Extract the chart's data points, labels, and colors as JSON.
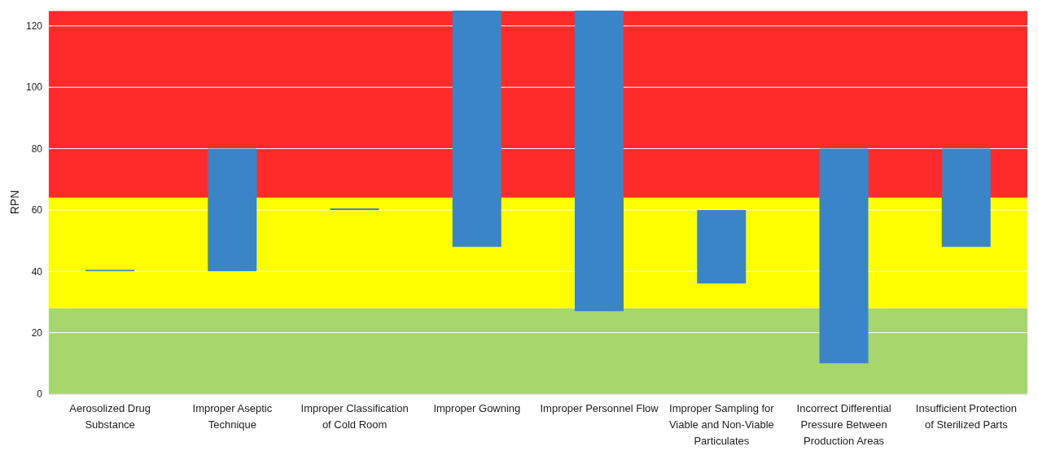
{
  "chart_data": {
    "type": "bar",
    "ylabel": "RPN",
    "categories": [
      "Aerosolized Drug Substance",
      "Improper Aseptic Technique",
      "Improper Classification of Cold Room",
      "Improper Gowning",
      "Improper Personnel Flow",
      "Improper Sampling for Viable and Non-Viable Particulates",
      "Incorrect Differential Pressure Between Production Areas",
      "Insufficient Protection of Sterilized Parts"
    ],
    "base": [
      40,
      40,
      60,
      48,
      27,
      36,
      10,
      48
    ],
    "values": [
      0.5,
      40,
      0.5,
      77,
      98,
      24,
      70,
      32
    ],
    "color": "#3a84c8",
    "ylim": [
      0,
      125
    ],
    "yticks": [
      0,
      20,
      40,
      60,
      80,
      100,
      120
    ],
    "grid": "y",
    "bands": [
      {
        "axis": "y",
        "from": 0,
        "to": 28,
        "color": "#a6d66c"
      },
      {
        "axis": "y",
        "from": 28,
        "to": 64,
        "color": "#ffff00"
      },
      {
        "axis": "y",
        "from": 64,
        "to": 125,
        "color": "#ff2a2a"
      }
    ]
  }
}
